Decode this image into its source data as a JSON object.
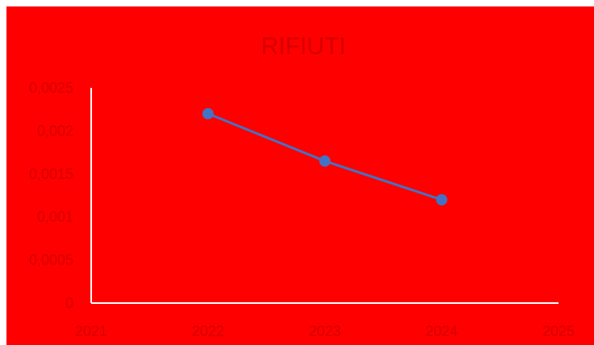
{
  "chart_data": {
    "type": "line",
    "title": "RIFIUTI",
    "xlabel": "",
    "ylabel": "",
    "x": [
      2022,
      2023,
      2024
    ],
    "series": [
      {
        "values": [
          0.0022,
          0.00165,
          0.0012
        ]
      }
    ],
    "xlim": [
      2021,
      2025
    ],
    "ylim": [
      0,
      0.0025
    ],
    "x_ticks": [
      "2021",
      "2022",
      "2023",
      "2024",
      "2025"
    ],
    "y_ticks": [
      "0",
      "0,0005",
      "0,001",
      "0,0015",
      "0,002",
      "0,0025"
    ],
    "grid": false,
    "legend": "none",
    "colors": {
      "background": "#ff0000",
      "line": "#4472c4",
      "axis": "#ffffff",
      "text": "#d40000"
    }
  }
}
